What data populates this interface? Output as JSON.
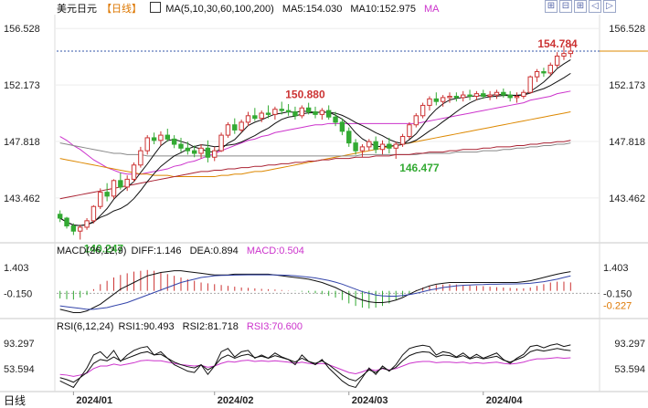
{
  "header": {
    "title": "美元日元",
    "period": "【日线】",
    "ma_label": "MA(5,10,30,60,100,200)",
    "ma5": "MA5:154.030",
    "ma10": "MA10:152.975",
    "ma_extra": "MA"
  },
  "toolbar": {
    "icons": [
      "grid-icon",
      "minus-icon",
      "plus-icon",
      "chevron-left-icon",
      "chevron-right-icon"
    ],
    "glyphs": [
      "⊞",
      "⊟",
      "⊞",
      "◁",
      "▷"
    ]
  },
  "macd_header": {
    "label": "MACD(26,12,9)",
    "diff": "DIFF:1.146",
    "dea": "DEA:0.894",
    "macd": "MACD:0.504"
  },
  "rsi_header": {
    "label": "RSI(6,12,24)",
    "rsi1": "RSI1:90.493",
    "rsi2": "RSI2:81.718",
    "rsi3": "RSI3:70.600"
  },
  "footer": {
    "period_tab": "日线"
  },
  "colors": {
    "up": "#cc3333",
    "down": "#33aa33",
    "ma5": "#111111",
    "ma10": "#111111",
    "ma30": "#cc33cc",
    "ma60": "#dd8800",
    "ma100": "#888888",
    "ma200": "#aa2233",
    "dashed": "#3355aa",
    "diff": "#111111",
    "dea": "#3344aa",
    "rsi1": "#111111",
    "rsi2": "#111111",
    "rsi3": "#cc33cc"
  },
  "chart_data": {
    "type": "candlestick",
    "price_axis_ticks": [
      156.528,
      152.173,
      147.818,
      143.462
    ],
    "price_axis_labels": [
      "156.528",
      "152.173",
      "147.818",
      "143.462"
    ],
    "ylim": [
      140.0,
      157.6
    ],
    "x_labels": [
      "2024/01",
      "2024/02",
      "2024/03",
      "2024/04"
    ],
    "x_label_index": [
      2,
      23,
      43,
      63
    ],
    "annotations": [
      {
        "text": "150.880",
        "index": 33,
        "value": 150.88,
        "color": "#cc3333"
      },
      {
        "text": "140.247",
        "index": 3,
        "value": 140.247,
        "color": "#33aa33"
      },
      {
        "text": "146.477",
        "index": 50,
        "value": 146.477,
        "color": "#33aa33"
      },
      {
        "text": "154.784",
        "index": 76,
        "value": 154.784,
        "color": "#cc3333"
      }
    ],
    "current_price": 154.784,
    "candles": [
      [
        142.2,
        142.5,
        141.6,
        141.9
      ],
      [
        141.9,
        142.0,
        141.1,
        141.3
      ],
      [
        141.3,
        141.5,
        140.6,
        140.9
      ],
      [
        140.9,
        141.4,
        140.247,
        141.2
      ],
      [
        141.2,
        141.9,
        141.0,
        141.7
      ],
      [
        141.7,
        142.9,
        141.5,
        142.8
      ],
      [
        142.8,
        144.2,
        142.6,
        143.9
      ],
      [
        143.9,
        144.6,
        143.2,
        143.6
      ],
      [
        143.6,
        144.9,
        143.4,
        144.8
      ],
      [
        144.8,
        145.4,
        144.1,
        144.3
      ],
      [
        144.3,
        145.2,
        144.0,
        144.9
      ],
      [
        144.9,
        146.2,
        144.7,
        146.0
      ],
      [
        146.0,
        147.4,
        145.8,
        147.1
      ],
      [
        147.1,
        148.3,
        146.8,
        148.1
      ],
      [
        148.1,
        148.5,
        147.6,
        147.9
      ],
      [
        147.9,
        148.6,
        147.5,
        148.3
      ],
      [
        148.3,
        148.8,
        147.8,
        148.0
      ],
      [
        148.0,
        148.3,
        147.3,
        147.6
      ],
      [
        147.6,
        148.1,
        147.0,
        147.3
      ],
      [
        147.3,
        147.8,
        146.8,
        147.1
      ],
      [
        147.1,
        147.5,
        146.6,
        146.9
      ],
      [
        146.9,
        147.6,
        146.5,
        147.3
      ],
      [
        147.3,
        147.9,
        146.2,
        146.6
      ],
      [
        146.6,
        147.4,
        146.3,
        147.1
      ],
      [
        147.1,
        148.5,
        147.0,
        148.3
      ],
      [
        148.3,
        149.3,
        148.1,
        149.1
      ],
      [
        149.1,
        149.6,
        148.4,
        148.7
      ],
      [
        148.7,
        149.5,
        148.5,
        149.3
      ],
      [
        149.3,
        150.1,
        149.0,
        149.8
      ],
      [
        149.8,
        150.4,
        149.4,
        149.6
      ],
      [
        149.6,
        150.2,
        149.3,
        150.0
      ],
      [
        150.0,
        150.6,
        149.6,
        149.9
      ],
      [
        149.9,
        150.5,
        149.5,
        150.3
      ],
      [
        150.3,
        150.88,
        149.9,
        150.2
      ],
      [
        150.2,
        150.7,
        149.8,
        150.1
      ],
      [
        150.1,
        150.5,
        149.5,
        149.8
      ],
      [
        149.8,
        150.6,
        149.6,
        150.4
      ],
      [
        150.4,
        150.8,
        149.9,
        150.1
      ],
      [
        150.1,
        150.5,
        149.6,
        149.9
      ],
      [
        149.9,
        150.4,
        149.5,
        150.2
      ],
      [
        150.2,
        150.6,
        149.5,
        149.7
      ],
      [
        149.7,
        150.1,
        149.0,
        149.3
      ],
      [
        149.3,
        149.6,
        148.3,
        148.6
      ],
      [
        148.6,
        148.9,
        147.4,
        147.7
      ],
      [
        147.7,
        148.0,
        146.8,
        147.1
      ],
      [
        147.1,
        147.6,
        146.6,
        147.4
      ],
      [
        147.4,
        148.0,
        147.1,
        147.8
      ],
      [
        147.8,
        148.2,
        146.9,
        147.2
      ],
      [
        147.2,
        147.9,
        146.8,
        147.6
      ],
      [
        147.6,
        148.1,
        146.9,
        147.3
      ],
      [
        147.3,
        147.8,
        146.477,
        147.6
      ],
      [
        147.6,
        148.4,
        147.4,
        148.2
      ],
      [
        148.2,
        149.3,
        148.0,
        149.1
      ],
      [
        149.1,
        150.0,
        148.9,
        149.8
      ],
      [
        149.8,
        150.8,
        149.6,
        150.6
      ],
      [
        150.6,
        151.3,
        150.2,
        151.1
      ],
      [
        151.1,
        151.6,
        150.6,
        150.9
      ],
      [
        150.9,
        151.4,
        150.5,
        151.2
      ],
      [
        151.2,
        151.6,
        150.8,
        151.3
      ],
      [
        151.3,
        151.6,
        150.9,
        151.2
      ],
      [
        151.2,
        151.7,
        150.9,
        151.4
      ],
      [
        151.4,
        151.8,
        151.0,
        151.3
      ],
      [
        151.3,
        151.7,
        151.0,
        151.5
      ],
      [
        151.5,
        151.8,
        151.1,
        151.3
      ],
      [
        151.3,
        151.7,
        151.0,
        151.4
      ],
      [
        151.4,
        151.8,
        151.1,
        151.6
      ],
      [
        151.6,
        151.9,
        151.2,
        151.4
      ],
      [
        151.4,
        151.7,
        150.9,
        151.2
      ],
      [
        151.2,
        151.6,
        150.8,
        151.3
      ],
      [
        151.3,
        151.8,
        151.1,
        151.6
      ],
      [
        151.6,
        152.9,
        151.5,
        152.8
      ],
      [
        152.8,
        153.4,
        152.4,
        153.2
      ],
      [
        153.2,
        153.5,
        152.8,
        153.1
      ],
      [
        153.1,
        153.9,
        152.9,
        153.7
      ],
      [
        153.7,
        154.7,
        153.5,
        154.4
      ],
      [
        154.4,
        155.2,
        154.1,
        154.6
      ],
      [
        154.6,
        155.4,
        154.3,
        154.784
      ]
    ],
    "ma_lines": {
      "ma30": [
        148.2,
        147.9,
        147.5,
        147.2,
        146.8,
        146.4,
        146.1,
        145.8,
        145.6,
        145.4,
        145.3,
        145.3,
        145.3,
        145.4,
        145.5,
        145.6,
        145.7,
        145.9,
        146.0,
        146.2,
        146.3,
        146.5,
        146.7,
        146.9,
        147.1,
        147.3,
        147.5,
        147.7,
        147.9,
        148.0,
        148.2,
        148.3,
        148.5,
        148.6,
        148.7,
        148.8,
        148.9,
        149.0,
        149.1,
        149.1,
        149.2,
        149.2,
        149.2,
        149.2,
        149.2,
        149.2,
        149.2,
        149.2,
        149.2,
        149.2,
        149.2,
        149.2,
        149.2,
        149.2,
        149.3,
        149.4,
        149.5,
        149.6,
        149.7,
        149.8,
        149.9,
        150.0,
        150.1,
        150.2,
        150.3,
        150.4,
        150.5,
        150.6,
        150.7,
        150.8,
        151.0,
        151.1,
        151.2,
        151.3,
        151.5,
        151.6,
        151.7
      ],
      "ma60": [
        146.5,
        146.4,
        146.3,
        146.2,
        146.1,
        146.0,
        145.9,
        145.8,
        145.7,
        145.6,
        145.5,
        145.4,
        145.3,
        145.3,
        145.2,
        145.2,
        145.2,
        145.1,
        145.1,
        145.1,
        145.1,
        145.1,
        145.1,
        145.1,
        145.2,
        145.2,
        145.3,
        145.3,
        145.4,
        145.5,
        145.5,
        145.6,
        145.7,
        145.8,
        145.9,
        146.0,
        146.1,
        146.2,
        146.3,
        146.4,
        146.5,
        146.6,
        146.7,
        146.8,
        146.9,
        147.0,
        147.1,
        147.2,
        147.3,
        147.4,
        147.5,
        147.6,
        147.7,
        147.8,
        147.9,
        148.0,
        148.1,
        148.2,
        148.3,
        148.4,
        148.5,
        148.6,
        148.7,
        148.8,
        148.9,
        149.0,
        149.1,
        149.2,
        149.3,
        149.4,
        149.5,
        149.6,
        149.7,
        149.8,
        149.9,
        150.0,
        150.1
      ],
      "ma100": [
        147.7,
        147.6,
        147.5,
        147.4,
        147.3,
        147.2,
        147.1,
        147.0,
        146.9,
        146.9,
        146.8,
        146.8,
        146.8,
        146.7,
        146.7,
        146.7,
        146.7,
        146.7,
        146.7,
        146.7,
        146.7,
        146.7,
        146.7,
        146.7,
        146.7,
        146.7,
        146.7,
        146.7,
        146.7,
        146.7,
        146.7,
        146.7,
        146.7,
        146.7,
        146.7,
        146.7,
        146.7,
        146.7,
        146.7,
        146.7,
        146.7,
        146.7,
        146.7,
        146.7,
        146.7,
        146.8,
        146.8,
        146.8,
        146.8,
        146.8,
        146.8,
        146.8,
        146.8,
        146.8,
        146.9,
        146.9,
        146.9,
        146.9,
        146.9,
        147.0,
        147.0,
        147.0,
        147.0,
        147.1,
        147.1,
        147.1,
        147.2,
        147.2,
        147.3,
        147.3,
        147.4,
        147.4,
        147.5,
        147.5,
        147.6,
        147.6,
        147.7
      ],
      "ma200": [
        143.4,
        143.5,
        143.6,
        143.7,
        143.8,
        143.9,
        144.0,
        144.1,
        144.2,
        144.3,
        144.4,
        144.5,
        144.6,
        144.7,
        144.8,
        144.9,
        145.0,
        145.1,
        145.2,
        145.3,
        145.4,
        145.5,
        145.5,
        145.6,
        145.6,
        145.7,
        145.7,
        145.8,
        145.8,
        145.9,
        145.9,
        146.0,
        146.0,
        146.1,
        146.1,
        146.2,
        146.2,
        146.3,
        146.3,
        146.4,
        146.4,
        146.5,
        146.5,
        146.5,
        146.6,
        146.6,
        146.6,
        146.7,
        146.7,
        146.7,
        146.8,
        146.8,
        146.8,
        146.9,
        146.9,
        147.0,
        147.0,
        147.0,
        147.1,
        147.1,
        147.2,
        147.2,
        147.2,
        147.3,
        147.3,
        147.4,
        147.4,
        147.4,
        147.5,
        147.5,
        147.6,
        147.6,
        147.7,
        147.7,
        147.8,
        147.8,
        147.9
      ]
    },
    "macd_axis_ticks": [
      1.403,
      -0.15
    ],
    "macd_axis_labels_left": [
      "1.403",
      "-0.150"
    ],
    "macd_axis_labels_right": [
      "1.403",
      "-0.150",
      "-0.227"
    ],
    "macd_ylim": [
      -1.6,
      2.0
    ],
    "macd_hist": [
      -0.45,
      -0.5,
      -0.52,
      -0.4,
      -0.25,
      0.1,
      0.4,
      0.6,
      0.8,
      0.95,
      1.05,
      1.15,
      1.2,
      1.25,
      1.2,
      1.1,
      1.0,
      0.9,
      0.8,
      0.7,
      0.6,
      0.5,
      0.45,
      0.4,
      0.35,
      0.3,
      0.25,
      0.2,
      0.18,
      0.15,
      0.12,
      0.1,
      0.08,
      0.05,
      0.02,
      -0.02,
      -0.05,
      -0.1,
      -0.15,
      -0.2,
      -0.3,
      -0.4,
      -0.55,
      -0.75,
      -0.9,
      -1.0,
      -1.05,
      -1.0,
      -0.9,
      -0.75,
      -0.55,
      -0.35,
      -0.15,
      0.05,
      0.2,
      0.3,
      0.35,
      0.38,
      0.4,
      0.38,
      0.35,
      0.32,
      0.3,
      0.28,
      0.25,
      0.22,
      0.2,
      0.18,
      0.15,
      0.15,
      0.2,
      0.3,
      0.4,
      0.5,
      0.55,
      0.55,
      0.504
    ],
    "macd_diff": [
      -1.1,
      -1.2,
      -1.3,
      -1.3,
      -1.2,
      -1.0,
      -0.8,
      -0.5,
      -0.2,
      0.1,
      0.3,
      0.5,
      0.7,
      0.9,
      1.0,
      1.1,
      1.15,
      1.2,
      1.2,
      1.15,
      1.1,
      1.05,
      1.0,
      0.95,
      0.95,
      0.95,
      1.0,
      1.0,
      1.0,
      1.0,
      1.0,
      1.0,
      0.95,
      0.9,
      0.85,
      0.8,
      0.75,
      0.7,
      0.6,
      0.5,
      0.35,
      0.2,
      0.0,
      -0.2,
      -0.4,
      -0.55,
      -0.65,
      -0.7,
      -0.7,
      -0.65,
      -0.55,
      -0.4,
      -0.2,
      0.0,
      0.15,
      0.3,
      0.4,
      0.45,
      0.5,
      0.5,
      0.5,
      0.5,
      0.5,
      0.5,
      0.5,
      0.5,
      0.5,
      0.5,
      0.5,
      0.55,
      0.6,
      0.7,
      0.8,
      0.9,
      1.0,
      1.08,
      1.146
    ],
    "macd_dea": [
      -0.9,
      -0.95,
      -1.0,
      -1.05,
      -1.1,
      -1.1,
      -1.05,
      -1.0,
      -0.9,
      -0.8,
      -0.7,
      -0.55,
      -0.4,
      -0.25,
      -0.1,
      0.05,
      0.2,
      0.35,
      0.5,
      0.6,
      0.7,
      0.8,
      0.85,
      0.9,
      0.92,
      0.93,
      0.94,
      0.95,
      0.96,
      0.96,
      0.96,
      0.96,
      0.95,
      0.94,
      0.93,
      0.9,
      0.86,
      0.82,
      0.77,
      0.7,
      0.62,
      0.52,
      0.4,
      0.25,
      0.1,
      -0.05,
      -0.15,
      -0.25,
      -0.3,
      -0.32,
      -0.32,
      -0.28,
      -0.22,
      -0.15,
      -0.05,
      0.05,
      0.12,
      0.2,
      0.25,
      0.3,
      0.33,
      0.35,
      0.37,
      0.38,
      0.4,
      0.4,
      0.41,
      0.41,
      0.42,
      0.43,
      0.45,
      0.5,
      0.55,
      0.62,
      0.7,
      0.8,
      0.894
    ],
    "rsi_axis_ticks": [
      93.297,
      53.594
    ],
    "rsi_axis_labels": [
      "93.297",
      "53.594"
    ],
    "rsi_ylim": [
      20,
      110
    ],
    "rsi1": [
      35,
      30,
      25,
      40,
      55,
      75,
      80,
      70,
      82,
      65,
      75,
      82,
      86,
      88,
      75,
      80,
      70,
      60,
      55,
      50,
      48,
      60,
      45,
      58,
      80,
      85,
      72,
      80,
      82,
      70,
      75,
      70,
      78,
      72,
      68,
      60,
      75,
      65,
      60,
      68,
      55,
      45,
      35,
      28,
      25,
      40,
      55,
      45,
      58,
      50,
      60,
      75,
      85,
      88,
      90,
      88,
      75,
      80,
      78,
      72,
      78,
      70,
      76,
      70,
      74,
      78,
      68,
      62,
      70,
      76,
      88,
      90,
      86,
      90,
      92,
      88,
      90.493
    ],
    "rsi2": [
      40,
      37,
      33,
      40,
      48,
      62,
      68,
      66,
      72,
      66,
      70,
      74,
      78,
      80,
      75,
      76,
      70,
      64,
      60,
      57,
      55,
      60,
      52,
      58,
      70,
      75,
      70,
      74,
      76,
      71,
      73,
      70,
      74,
      71,
      68,
      64,
      70,
      65,
      62,
      66,
      60,
      52,
      44,
      38,
      35,
      43,
      52,
      48,
      55,
      51,
      56,
      66,
      74,
      78,
      80,
      79,
      72,
      75,
      74,
      71,
      74,
      69,
      72,
      69,
      71,
      73,
      67,
      64,
      68,
      72,
      80,
      83,
      81,
      83,
      85,
      83,
      81.718
    ],
    "rsi3": [
      45,
      44,
      42,
      44,
      47,
      54,
      58,
      58,
      61,
      59,
      61,
      63,
      66,
      67,
      66,
      66,
      64,
      62,
      60,
      59,
      58,
      59,
      56,
      58,
      62,
      65,
      64,
      66,
      67,
      65,
      66,
      65,
      66,
      65,
      64,
      62,
      64,
      62,
      61,
      62,
      60,
      56,
      52,
      48,
      46,
      49,
      53,
      51,
      54,
      52,
      54,
      58,
      62,
      64,
      65,
      65,
      63,
      64,
      64,
      63,
      64,
      62,
      63,
      62,
      63,
      64,
      62,
      61,
      62,
      64,
      67,
      69,
      69,
      70,
      71,
      70,
      70.6
    ]
  }
}
